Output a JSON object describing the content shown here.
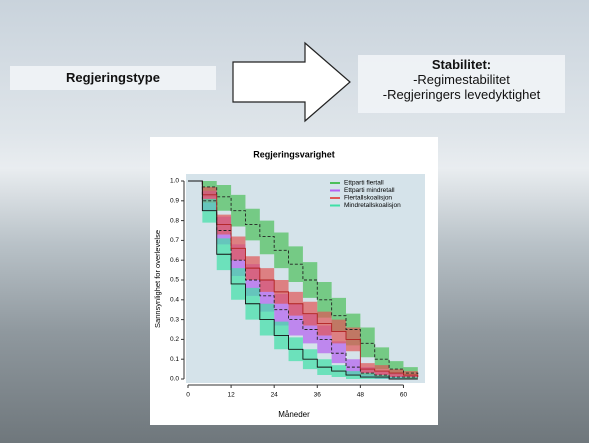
{
  "slide": {
    "left_box": "Regjeringstype",
    "right_box": {
      "title": "Stabilitet:",
      "items": [
        "-Regimestabilitet",
        "-Regjeringers levedyktighet"
      ]
    }
  },
  "chart_data": {
    "type": "step",
    "title": "Regjeringsvarighet",
    "x_label": "Måneder",
    "y_label": "Sannsynlighet for overlevelse",
    "x": [
      0,
      4,
      8,
      12,
      16,
      20,
      24,
      28,
      32,
      36,
      40,
      44,
      48,
      52,
      56,
      60,
      64
    ],
    "xlim": [
      0,
      66
    ],
    "ylim": [
      0,
      1
    ],
    "xticks": [
      0,
      12,
      24,
      36,
      48,
      60
    ],
    "yticks": [
      {
        "value": 0,
        "label": "0.0"
      },
      0.1,
      0.2,
      0.3,
      0.4,
      0.5,
      0.6,
      0.7,
      0.8,
      0.9,
      {
        "value": 1,
        "label": "1.0"
      }
    ],
    "legend": "upper right",
    "series": [
      {
        "name": "Ettparti flertall",
        "color": "#4cbf5a",
        "line_color": "#222222",
        "linestyle": "dashed",
        "values": [
          1,
          0.97,
          0.92,
          0.85,
          0.78,
          0.72,
          0.65,
          0.58,
          0.5,
          0.4,
          0.32,
          0.25,
          0.18,
          0.1,
          0.05,
          0.03,
          0.02
        ],
        "lower": [
          1,
          0.92,
          0.85,
          0.77,
          0.7,
          0.63,
          0.56,
          0.49,
          0.41,
          0.31,
          0.24,
          0.17,
          0.11,
          0.05,
          0.02,
          0.01,
          0.01
        ],
        "upper": [
          1,
          1,
          0.98,
          0.93,
          0.86,
          0.8,
          0.74,
          0.67,
          0.59,
          0.49,
          0.41,
          0.33,
          0.26,
          0.16,
          0.09,
          0.06,
          0.04
        ]
      },
      {
        "name": "Ettparti mindretall",
        "color": "#b45ff0",
        "line_color": "#222222",
        "linestyle": "dashed",
        "values": [
          1,
          0.9,
          0.75,
          0.6,
          0.5,
          0.42,
          0.35,
          0.3,
          0.25,
          0.2,
          0.13,
          0.06,
          0.03,
          0.02,
          0.01,
          0.01,
          0.01
        ],
        "lower": [
          1,
          0.85,
          0.68,
          0.52,
          0.42,
          0.34,
          0.27,
          0.22,
          0.18,
          0.13,
          0.08,
          0.02,
          0.01,
          0,
          0,
          0,
          0
        ],
        "upper": [
          1,
          0.95,
          0.82,
          0.68,
          0.58,
          0.5,
          0.43,
          0.38,
          0.33,
          0.27,
          0.19,
          0.1,
          0.06,
          0.04,
          0.03,
          0.02,
          0.02
        ]
      },
      {
        "name": "Flertallskoalisjon",
        "color": "#e05656",
        "line_color": "#b02020",
        "linestyle": "solid",
        "values": [
          1,
          0.93,
          0.78,
          0.66,
          0.56,
          0.5,
          0.44,
          0.38,
          0.33,
          0.28,
          0.24,
          0.2,
          0.05,
          0.04,
          0.03,
          0.02,
          0.01
        ],
        "lower": [
          1,
          0.89,
          0.73,
          0.6,
          0.5,
          0.44,
          0.38,
          0.32,
          0.27,
          0.22,
          0.18,
          0.14,
          0.02,
          0.01,
          0.01,
          0,
          0
        ],
        "upper": [
          1,
          0.97,
          0.83,
          0.72,
          0.62,
          0.56,
          0.5,
          0.44,
          0.39,
          0.34,
          0.3,
          0.26,
          0.08,
          0.07,
          0.05,
          0.04,
          0.03
        ]
      },
      {
        "name": "Mindretallskoalisjon",
        "color": "#3fe0a6",
        "line_color": "#111111",
        "linestyle": "solid",
        "values": [
          1,
          0.85,
          0.63,
          0.48,
          0.38,
          0.3,
          0.22,
          0.15,
          0.1,
          0.06,
          0.04,
          0.02,
          0.01,
          0.01,
          0,
          0,
          0
        ],
        "lower": [
          1,
          0.79,
          0.55,
          0.4,
          0.3,
          0.22,
          0.15,
          0.09,
          0.05,
          0.02,
          0.01,
          0,
          0,
          0,
          0,
          0,
          0
        ],
        "upper": [
          1,
          0.91,
          0.71,
          0.56,
          0.46,
          0.38,
          0.29,
          0.21,
          0.15,
          0.1,
          0.07,
          0.04,
          0.03,
          0.02,
          0.01,
          0.01,
          0.01
        ]
      }
    ]
  }
}
